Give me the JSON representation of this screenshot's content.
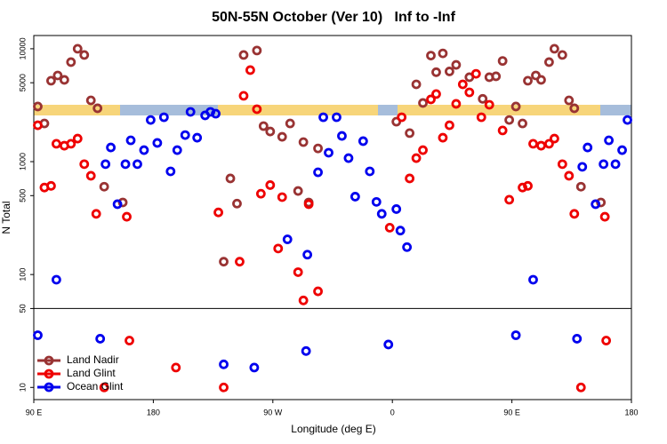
{
  "chart_data": {
    "type": "scatter",
    "title": "50N-55N October (Ver 10)   Inf to -Inf",
    "x_label": "Longitude (deg E)",
    "y_label": "N Total",
    "log_y": true,
    "legend": "bottom-left",
    "xlim": [
      90,
      540
    ],
    "xticks": [
      {
        "value": 90,
        "label": "90 E"
      },
      {
        "value": 180,
        "label": "180"
      },
      {
        "value": 270,
        "label": "90 W"
      },
      {
        "value": 360,
        "label": "0"
      },
      {
        "value": 450,
        "label": "90 E"
      },
      {
        "value": 540,
        "label": "180"
      }
    ],
    "ylim": [
      7.8,
      13100
    ],
    "yticks": [
      10,
      50,
      100,
      500,
      1000,
      5000,
      10000
    ],
    "series": [
      {
        "name": "Land Nadir",
        "color": "#993333",
        "x": [
          93,
          98,
          103,
          108,
          113,
          118,
          123,
          128,
          133,
          138,
          143,
          157,
          233,
          238,
          243,
          248,
          258,
          263,
          268,
          277,
          283,
          289,
          293,
          297,
          304,
          363,
          373,
          378,
          383,
          389,
          393,
          398,
          403,
          408,
          418,
          428,
          433,
          438,
          443,
          448,
          453,
          458,
          462,
          468,
          472,
          478,
          482,
          488,
          493,
          497,
          502,
          517
        ],
        "values": [
          3080,
          2180,
          5210,
          5800,
          5300,
          7620,
          10000,
          8810,
          3490,
          2970,
          600,
          435,
          130,
          710,
          425,
          8810,
          9650,
          2065,
          1850,
          1660,
          2180,
          550,
          1490,
          435,
          1310,
          2260,
          1790,
          4840,
          3310,
          8700,
          6200,
          9100,
          6300,
          7200,
          5600,
          3600,
          5600,
          5700,
          7800,
          2340,
          3080,
          2180,
          5210,
          5800,
          5300,
          7620,
          10000,
          8810,
          3490,
          2970,
          600,
          435
        ]
      },
      {
        "name": "Land Glint",
        "color": "#ee0000",
        "x": [
          93,
          98,
          103,
          107,
          113,
          118,
          123,
          128,
          133,
          137,
          160,
          229,
          245,
          248,
          253,
          258,
          261,
          268,
          277,
          274,
          289,
          293,
          297,
          304,
          358,
          367,
          373,
          378,
          383,
          389,
          393,
          398,
          403,
          408,
          413,
          418,
          423,
          427,
          433,
          443,
          448,
          458,
          462,
          466,
          472,
          478,
          482,
          488,
          493,
          497,
          520,
          143,
          162,
          197,
          233,
          502,
          521
        ],
        "values": [
          2100,
          590,
          610,
          1440,
          1385,
          1440,
          1600,
          950,
          750,
          345,
          325,
          355,
          130,
          3830,
          6470,
          2915,
          520,
          620,
          485,
          170,
          105,
          59,
          420,
          71,
          260,
          2475,
          710,
          1075,
          1265,
          3560,
          3970,
          1630,
          2100,
          3250,
          4840,
          4110,
          6000,
          2475,
          3190,
          1890,
          460,
          590,
          610,
          1440,
          1385,
          1440,
          1600,
          950,
          750,
          345,
          325,
          10,
          26,
          15,
          10,
          10,
          26
        ]
      },
      {
        "name": "Ocean Glint",
        "color": "#0000ee",
        "x": [
          107,
          144,
          148,
          153,
          159,
          163,
          168,
          173,
          178,
          183,
          188,
          193,
          198,
          204,
          208,
          213,
          219,
          223,
          227,
          281,
          296,
          304,
          308,
          312,
          318,
          322,
          327,
          332,
          338,
          343,
          348,
          352,
          363,
          366,
          371,
          466,
          503,
          507,
          513,
          519,
          523,
          528,
          533,
          537,
          93,
          140,
          233,
          256,
          295,
          357,
          453,
          499
        ],
        "values": [
          90,
          950,
          1335,
          420,
          950,
          1545,
          950,
          1265,
          2340,
          1465,
          2475,
          820,
          1265,
          1720,
          2760,
          1630,
          2570,
          2760,
          2660,
          205,
          150,
          805,
          2475,
          1200,
          2475,
          1690,
          1075,
          490,
          1520,
          820,
          440,
          345,
          380,
          245,
          175,
          90,
          900,
          1335,
          420,
          950,
          1545,
          950,
          1265,
          2340,
          29,
          27,
          16,
          15,
          21,
          24,
          29,
          27
        ]
      }
    ]
  }
}
